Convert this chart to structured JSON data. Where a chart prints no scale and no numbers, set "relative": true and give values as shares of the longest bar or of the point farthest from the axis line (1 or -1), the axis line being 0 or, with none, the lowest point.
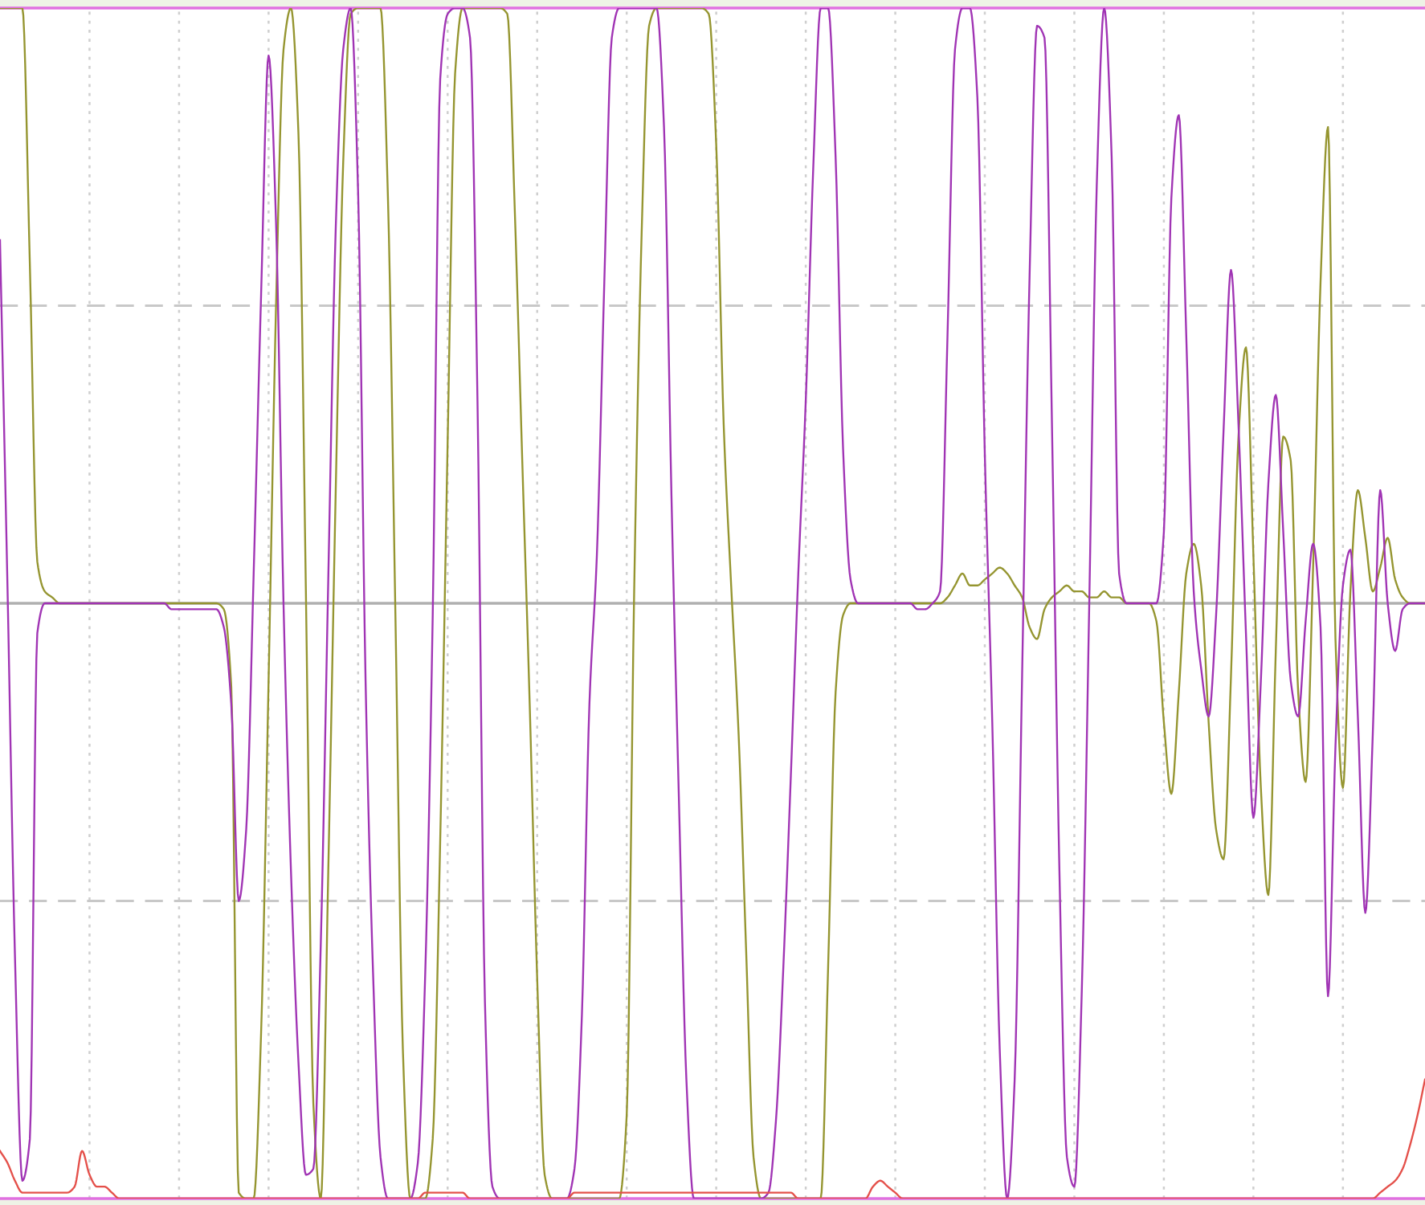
{
  "chart_data": {
    "type": "line",
    "relative": true,
    "grid": "x",
    "ref_lines": [
      {
        "axis": "y",
        "value": 0.5,
        "color": "#c8c8c8",
        "line_style": "dashed"
      },
      {
        "axis": "y",
        "value": -0.5,
        "color": "#c8c8c8",
        "line_style": "dashed"
      }
    ],
    "categories": [
      null,
      null,
      null,
      null,
      null,
      null,
      null,
      null,
      null,
      null,
      null,
      null,
      null,
      null,
      null,
      null,
      null,
      null,
      null,
      null,
      null,
      null,
      null,
      null,
      null,
      null,
      null,
      null,
      null,
      null,
      null,
      null,
      null,
      null,
      null,
      null,
      null,
      null,
      null,
      null,
      null,
      null,
      null,
      null,
      null,
      null,
      null,
      null,
      null,
      null,
      null,
      null,
      null,
      null,
      null,
      null,
      null,
      null,
      null,
      null,
      null,
      null,
      null,
      null,
      null,
      null,
      null,
      null,
      null,
      null,
      null,
      null,
      null,
      null,
      null,
      null,
      null,
      null,
      null,
      null,
      null,
      null,
      null,
      null,
      null,
      null,
      null,
      null,
      null,
      null,
      null,
      null,
      null,
      null,
      null,
      null,
      null,
      null,
      null,
      null,
      null,
      null,
      null,
      null,
      null,
      null,
      null,
      null,
      null,
      null,
      null,
      null,
      null,
      null,
      null,
      null,
      null,
      null,
      null,
      null,
      null,
      null,
      null,
      null,
      null,
      null,
      null,
      null,
      null,
      null,
      null,
      null,
      null,
      null,
      null,
      null,
      null,
      null,
      null,
      null,
      null,
      null,
      null,
      null,
      null,
      null,
      null,
      null,
      null,
      null,
      null,
      null,
      null,
      null,
      null,
      null,
      null,
      null,
      null,
      null,
      null,
      null,
      null,
      null,
      null,
      null,
      null,
      null,
      null,
      null,
      null,
      null,
      null,
      null,
      null,
      null,
      null,
      null,
      null,
      null,
      null,
      null,
      null,
      null,
      null,
      null,
      null,
      null,
      null,
      null,
      null,
      null
    ],
    "series": [
      {
        "color": "#959530",
        "values": [
          1.0,
          1.0,
          1.0,
          1.0,
          0.57,
          0.07,
          0.02,
          0.01,
          0,
          0,
          0,
          0,
          0,
          0,
          0,
          0,
          0,
          0,
          0,
          0,
          0,
          0,
          0,
          0,
          0,
          0,
          0,
          0,
          0,
          0,
          -0.01,
          -0.14,
          -0.99,
          -1.0,
          -1.0,
          -0.72,
          -0.13,
          0.5,
          0.93,
          1.0,
          0.79,
          0.02,
          -0.84,
          -1.0,
          -0.45,
          0.19,
          0.74,
          0.99,
          1.0,
          1.0,
          1.0,
          1.0,
          0.68,
          -0.02,
          -0.75,
          -1.0,
          -1.0,
          -1.0,
          -0.9,
          -0.4,
          0.27,
          0.89,
          1.0,
          1.0,
          1.0,
          1.0,
          1.0,
          1.0,
          0.99,
          0.66,
          0.24,
          -0.17,
          -0.63,
          -0.96,
          -1.0,
          -1.0,
          -1.0,
          -1.0,
          -1.0,
          -1.0,
          -1.0,
          -1.0,
          -1.0,
          -1.0,
          -0.86,
          0.02,
          0.62,
          0.97,
          1.0,
          1.0,
          1.0,
          1.0,
          1.0,
          1.0,
          1.0,
          0.99,
          0.77,
          0.3,
          0.03,
          -0.22,
          -0.58,
          -0.93,
          -1.0,
          -1.0,
          -1.0,
          -1.0,
          -1.0,
          -1.0,
          -1.0,
          -1.0,
          -1.0,
          -0.61,
          -0.15,
          -0.02,
          0,
          0,
          0,
          0,
          0,
          0,
          0,
          0,
          0,
          0,
          0,
          0,
          0,
          0.01,
          0.03,
          0.05,
          0.03,
          0.03,
          0.04,
          0.05,
          0.06,
          0.05,
          0.03,
          0.01,
          -0.04,
          -0.06,
          -0.01,
          0.01,
          0.02,
          0.03,
          0.02,
          0.02,
          0.01,
          0.01,
          0.02,
          0.01,
          0.01,
          0,
          0,
          0,
          0,
          -0.03,
          -0.2,
          -0.32,
          -0.15,
          0.05,
          0.1,
          0.03,
          -0.2,
          -0.38,
          -0.43,
          -0.12,
          0.28,
          0.43,
          0.08,
          -0.31,
          -0.49,
          -0.08,
          0.28,
          0.24,
          -0.15,
          -0.3,
          0.06,
          0.54,
          0.8,
          -0.06,
          -0.31,
          0.02,
          0.19,
          0.11,
          0.02,
          0.06,
          0.11,
          0.04,
          0.01,
          0,
          0,
          0
        ]
      },
      {
        "color": "#a034b4",
        "values": [
          0.61,
          0.03,
          -0.59,
          -0.97,
          -0.9,
          -0.05,
          0,
          0,
          0,
          0,
          0,
          0,
          0,
          0,
          0,
          0,
          0,
          0,
          0,
          0,
          0,
          0,
          0,
          -0.01,
          -0.01,
          -0.01,
          -0.01,
          -0.01,
          -0.01,
          -0.01,
          -0.04,
          -0.17,
          -0.5,
          -0.38,
          0.05,
          0.52,
          0.92,
          0.64,
          0,
          -0.45,
          -0.77,
          -0.96,
          -0.95,
          -0.57,
          0.04,
          0.63,
          0.93,
          1.0,
          0.69,
          -0.13,
          -0.62,
          -0.93,
          -1.0,
          -1.0,
          -1.0,
          -1.0,
          -0.94,
          -0.62,
          -0.02,
          0.88,
          0.99,
          1.0,
          1.0,
          0.95,
          0.34,
          -0.67,
          -0.98,
          -1.0,
          -1.0,
          -1.0,
          -1.0,
          -1.0,
          -1.0,
          -1.0,
          -1.0,
          -1.0,
          -1.0,
          -0.95,
          -0.69,
          -0.17,
          0.08,
          0.54,
          0.95,
          1.0,
          1.0,
          1.0,
          1.0,
          1.0,
          1.0,
          0.8,
          0.18,
          -0.33,
          -0.8,
          -1.0,
          -1.0,
          -1.0,
          -1.0,
          -1.0,
          -1.0,
          -1.0,
          -1.0,
          -1.0,
          -1.0,
          -0.99,
          -0.87,
          -0.61,
          -0.29,
          0.05,
          0.34,
          0.73,
          1.0,
          1.0,
          0.75,
          0.26,
          0.04,
          0,
          0,
          0,
          0,
          0,
          0,
          0,
          0,
          -0.01,
          -0.01,
          0,
          0.02,
          0.45,
          0.93,
          1.0,
          1.0,
          0.85,
          0.25,
          -0.2,
          -0.75,
          -1.0,
          -0.8,
          -0.12,
          0.55,
          0.97,
          0.95,
          0.3,
          -0.45,
          -0.93,
          -0.98,
          -0.65,
          0,
          0.7,
          1.0,
          0.75,
          0.05,
          0,
          0,
          0,
          0,
          0,
          0.12,
          0.68,
          0.82,
          0.45,
          0.02,
          -0.11,
          -0.19,
          -0.02,
          0.29,
          0.56,
          0.3,
          -0.05,
          -0.36,
          -0.13,
          0.2,
          0.35,
          0.12,
          -0.13,
          -0.19,
          -0.03,
          0.1,
          -0.04,
          -0.66,
          -0.24,
          0.03,
          0.09,
          -0.19,
          -0.52,
          -0.22,
          0.19,
          0,
          -0.08,
          -0.01,
          0,
          0,
          0
        ]
      },
      {
        "color": "#e4504a",
        "values": [
          -0.92,
          -0.94,
          -0.97,
          -0.99,
          -0.99,
          -0.99,
          -0.99,
          -0.99,
          -0.99,
          -0.99,
          -0.98,
          -0.92,
          -0.96,
          -0.98,
          -0.98,
          -0.99,
          -1.0,
          -1.0,
          -1.0,
          -1.0,
          -1.0,
          -1.0,
          -1.0,
          -1.0,
          -1.0,
          -1.0,
          -1.0,
          -1.0,
          -1.0,
          -1.0,
          -1.0,
          -1.0,
          -1.0,
          -1.0,
          -1.0,
          -1.0,
          -1.0,
          -1.0,
          -1.0,
          -1.0,
          -1.0,
          -1.0,
          -1.0,
          -1.0,
          -1.0,
          -1.0,
          -1.0,
          -1.0,
          -1.0,
          -1.0,
          -1.0,
          -1.0,
          -1.0,
          -1.0,
          -1.0,
          -1.0,
          -1.0,
          -0.99,
          -0.99,
          -0.99,
          -0.99,
          -0.99,
          -0.99,
          -1.0,
          -1.0,
          -1.0,
          -1.0,
          -1.0,
          -1.0,
          -1.0,
          -1.0,
          -1.0,
          -1.0,
          -1.0,
          -1.0,
          -1.0,
          -1.0,
          -0.99,
          -0.99,
          -0.99,
          -0.99,
          -0.99,
          -0.99,
          -0.99,
          -0.99,
          -0.99,
          -0.99,
          -0.99,
          -0.99,
          -0.99,
          -0.99,
          -0.99,
          -0.99,
          -0.99,
          -0.99,
          -0.99,
          -0.99,
          -0.99,
          -0.99,
          -0.99,
          -0.99,
          -0.99,
          -0.99,
          -0.99,
          -0.99,
          -0.99,
          -0.99,
          -1.0,
          -1.0,
          -1.0,
          -1.0,
          -1.0,
          -1.0,
          -1.0,
          -1.0,
          -1.0,
          -1.0,
          -0.98,
          -0.97,
          -0.98,
          -0.99,
          -1.0,
          -1.0,
          -1.0,
          -1.0,
          -1.0,
          -1.0,
          -1.0,
          -1.0,
          -1.0,
          -1.0,
          -1.0,
          -1.0,
          -1.0,
          -1.0,
          -1.0,
          -1.0,
          -1.0,
          -1.0,
          -1.0,
          -1.0,
          -1.0,
          -1.0,
          -1.0,
          -1.0,
          -1.0,
          -1.0,
          -1.0,
          -1.0,
          -1.0,
          -1.0,
          -1.0,
          -1.0,
          -1.0,
          -1.0,
          -1.0,
          -1.0,
          -1.0,
          -1.0,
          -1.0,
          -1.0,
          -1.0,
          -1.0,
          -1.0,
          -1.0,
          -1.0,
          -1.0,
          -1.0,
          -1.0,
          -1.0,
          -1.0,
          -1.0,
          -1.0,
          -1.0,
          -1.0,
          -1.0,
          -1.0,
          -1.0,
          -1.0,
          -1.0,
          -1.0,
          -1.0,
          -1.0,
          -1.0,
          -1.0,
          -0.99,
          -0.98,
          -0.97,
          -0.95,
          -0.91,
          -0.86,
          -0.8
        ]
      }
    ]
  }
}
